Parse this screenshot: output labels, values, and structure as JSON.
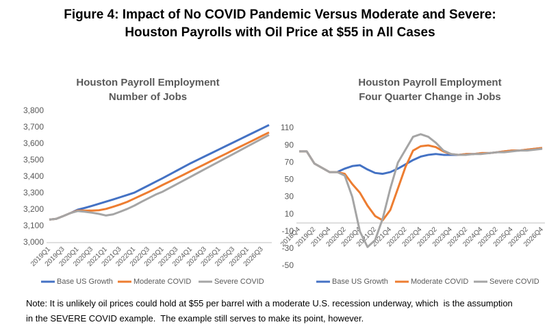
{
  "header": {
    "title_lines": [
      "Figure 4: Impact of No COVID Pandemic Versus Moderate and Severe:",
      "Houston Payrolls with Oil Price at $55 in All Cases"
    ]
  },
  "chart_data": [
    {
      "type": "line",
      "title": "Houston Payroll Employment",
      "subtitle": "Number of Jobs",
      "categories": [
        "2019Q1",
        null,
        "2019Q3",
        null,
        "2020Q1",
        null,
        "2020Q3",
        null,
        "2021Q1",
        null,
        "2021Q3",
        null,
        "2022Q1",
        null,
        "2022Q3",
        null,
        "2023Q1",
        null,
        "2023Q3",
        null,
        "2024Q1",
        null,
        "2024Q3",
        null,
        "2025Q1",
        null,
        "2025Q3",
        null,
        "2026Q1",
        null,
        "2026Q3",
        null
      ],
      "series": [
        {
          "name": "Base US Growth",
          "color": "#4472c4",
          "values": [
            3140,
            3145,
            3162,
            3180,
            3200,
            3211,
            3223,
            3236,
            3249,
            3262,
            3276,
            3290,
            3304,
            3326,
            3348,
            3370,
            3392,
            3415,
            3438,
            3461,
            3484,
            3505,
            3526,
            3547,
            3568,
            3589,
            3610,
            3631,
            3652,
            3673,
            3694,
            3715
          ]
        },
        {
          "name": "Moderate COVID",
          "color": "#ed7d31",
          "values": [
            3140,
            3145,
            3162,
            3180,
            3195,
            3195,
            3195,
            3197,
            3205,
            3218,
            3232,
            3248,
            3268,
            3288,
            3308,
            3329,
            3351,
            3372,
            3393,
            3414,
            3436,
            3457,
            3478,
            3500,
            3521,
            3542,
            3564,
            3585,
            3606,
            3627,
            3649,
            3670
          ]
        },
        {
          "name": "Severe COVID",
          "color": "#a5a5a5",
          "values": [
            3140,
            3145,
            3162,
            3180,
            3192,
            3188,
            3182,
            3175,
            3165,
            3172,
            3188,
            3205,
            3225,
            3248,
            3270,
            3292,
            3310,
            3333,
            3356,
            3379,
            3402,
            3425,
            3448,
            3471,
            3494,
            3517,
            3540,
            3563,
            3586,
            3609,
            3632,
            3655
          ]
        }
      ],
      "ylim": [
        3000,
        3800
      ],
      "yticks": [
        {
          "value": 3000,
          "label": "3,000"
        },
        {
          "value": 3100,
          "label": "3,100"
        },
        {
          "value": 3200,
          "label": "3,200"
        },
        {
          "value": 3300,
          "label": "3,300"
        },
        {
          "value": 3400,
          "label": "3,400"
        },
        {
          "value": 3500,
          "label": "3,500"
        },
        {
          "value": 3600,
          "label": "3,600"
        },
        {
          "value": 3700,
          "label": "3,700"
        },
        {
          "value": 3800,
          "label": "3,800"
        }
      ],
      "grid": false,
      "legend": "bottom"
    },
    {
      "type": "line",
      "title": "Houston Payroll Employment",
      "subtitle": "Four Quarter Change in Jobs",
      "categories": [
        "2018Q4",
        null,
        "2019Q2",
        null,
        "2019Q4",
        null,
        "2020Q2",
        null,
        "2020Q4",
        null,
        "2021Q2",
        null,
        "2021Q4",
        null,
        "2022Q2",
        null,
        "2022Q4",
        null,
        "2023Q2",
        null,
        "2023Q4",
        null,
        "2024Q2",
        null,
        "2024Q4",
        null,
        "2025Q2",
        null,
        "2025Q4",
        null,
        "2026Q2",
        null,
        "2026Q4"
      ],
      "series": [
        {
          "name": "Base US Growth",
          "color": "#4472c4",
          "values": [
            83,
            83,
            69,
            64,
            59,
            59,
            63,
            66,
            67,
            62,
            58,
            57,
            59,
            63,
            68,
            73,
            77,
            79,
            80,
            79,
            79,
            79,
            80,
            80,
            81,
            81,
            82,
            83,
            84,
            84,
            85,
            86,
            87
          ]
        },
        {
          "name": "Moderate COVID",
          "color": "#ed7d31",
          "values": [
            83,
            83,
            69,
            64,
            59,
            59,
            57,
            45,
            35,
            20,
            8,
            3,
            15,
            40,
            65,
            84,
            89,
            90,
            88,
            83,
            80,
            79,
            80,
            80,
            81,
            81,
            82,
            83,
            84,
            84,
            85,
            86,
            87
          ]
        },
        {
          "name": "Severe COVID",
          "color": "#a5a5a5",
          "values": [
            83,
            83,
            69,
            64,
            59,
            59,
            55,
            30,
            -10,
            -28,
            -20,
            5,
            40,
            70,
            85,
            100,
            103,
            100,
            93,
            84,
            80,
            79,
            79,
            80,
            80,
            81,
            82,
            82,
            83,
            84,
            84,
            85,
            86
          ]
        }
      ],
      "ylim": [
        -50,
        110
      ],
      "yticks": [
        -50,
        -30,
        -10,
        10,
        30,
        50,
        70,
        90,
        110
      ],
      "grid": false,
      "legend": "bottom"
    }
  ],
  "note": "Note: It is unlikely oil prices could hold at $55 per barrel with a moderate U.S. recession underway, which  is the assumption in the SEVERE COVID example.  The example still serves to make its point, however."
}
